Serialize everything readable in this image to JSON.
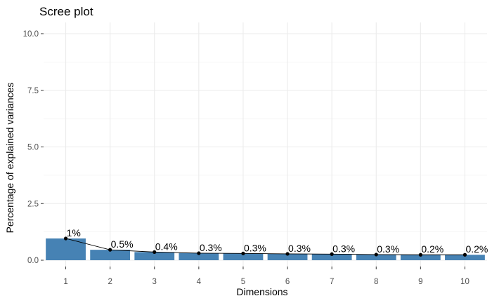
{
  "chart_data": {
    "type": "bar",
    "title": "Scree plot",
    "xlabel": "Dimensions",
    "ylabel": "Percentage of explained variances",
    "categories": [
      "1",
      "2",
      "3",
      "4",
      "5",
      "6",
      "7",
      "8",
      "9",
      "10"
    ],
    "values": [
      0.96,
      0.46,
      0.36,
      0.31,
      0.3,
      0.28,
      0.27,
      0.25,
      0.24,
      0.24
    ],
    "data_labels": [
      "1%",
      "0.5%",
      "0.4%",
      "0.3%",
      "0.3%",
      "0.3%",
      "0.3%",
      "0.3%",
      "0.2%",
      "0.2%"
    ],
    "ylim": [
      0,
      10
    ],
    "y_ticks": [
      0,
      2.5,
      5,
      7.5,
      10
    ],
    "y_tick_labels": [
      "0.0",
      "2.5",
      "5.0",
      "7.5",
      "10.0"
    ],
    "overlay": "line with points",
    "grid": true,
    "legend": "none",
    "colors": {
      "bar": "#4682B4",
      "line": "#000000",
      "grid": "#ebebeb"
    }
  }
}
